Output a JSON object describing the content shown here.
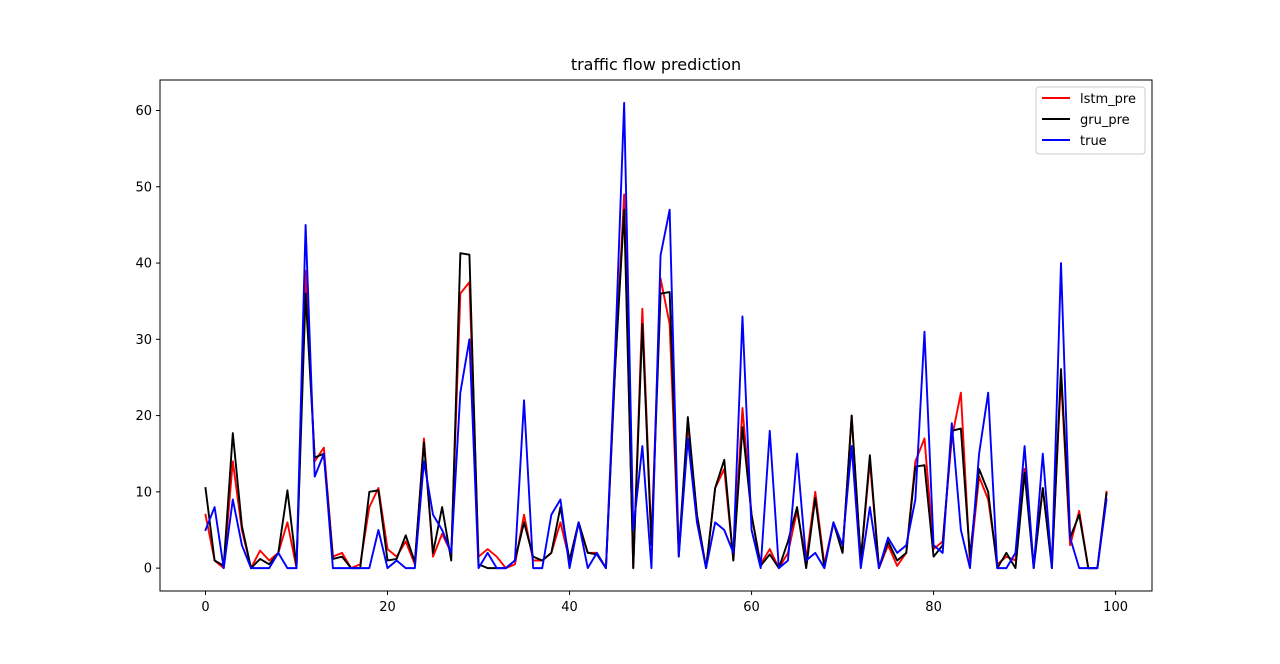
{
  "chart_data": {
    "type": "line",
    "title": "traffic flow prediction",
    "xlabel": "",
    "ylabel": "",
    "xlim": [
      -5,
      104
    ],
    "ylim": [
      -3,
      64
    ],
    "xticks": [
      0,
      20,
      40,
      60,
      80,
      100
    ],
    "yticks": [
      0,
      10,
      20,
      30,
      40,
      50,
      60
    ],
    "grid": false,
    "legend_position": "top-right",
    "series": [
      {
        "name": "lstm_pre",
        "color": "#ff0000",
        "values": [
          7,
          1,
          0,
          14,
          5,
          0,
          2.3,
          1,
          2,
          6,
          0,
          39,
          14,
          15.8,
          1.5,
          2,
          0,
          0.5,
          8,
          10.5,
          2.5,
          1.5,
          3.5,
          0.5,
          17,
          1.5,
          4.5,
          2,
          36,
          37.5,
          1.5,
          2.5,
          1.5,
          0,
          0.5,
          7,
          1,
          1,
          2,
          6,
          1,
          6,
          2,
          2,
          0,
          26,
          49,
          0,
          34,
          3.5,
          38,
          32,
          1.5,
          19,
          7,
          0,
          10.5,
          13,
          1,
          21,
          7,
          0.5,
          2.5,
          0,
          2,
          7.5,
          1,
          10,
          0.5,
          6,
          2,
          20,
          1,
          14,
          0,
          3,
          0.3,
          2,
          14,
          17,
          2.5,
          3.5,
          17,
          23,
          0.5,
          12,
          9,
          0.5,
          1.5,
          1,
          13,
          0.5,
          10.5,
          0.5,
          25,
          3,
          7.5,
          0,
          0,
          10
        ]
      },
      {
        "name": "gru_pre",
        "color": "#000000",
        "values": [
          10.5,
          1,
          0.3,
          17.7,
          5.5,
          0,
          1.2,
          0.5,
          2,
          10.2,
          0.2,
          36,
          14.5,
          15,
          1.2,
          1.5,
          0,
          0,
          10,
          10.2,
          1,
          1.2,
          4.3,
          0.8,
          16.5,
          2,
          8,
          1,
          41.3,
          41.1,
          0.5,
          0,
          0,
          0,
          1,
          6,
          1.5,
          1,
          2,
          8,
          1,
          6,
          2,
          1.8,
          0,
          26,
          47,
          0,
          32,
          3,
          36,
          36.2,
          2,
          19.8,
          7,
          0,
          10.5,
          14.2,
          1,
          18.5,
          7,
          0.3,
          1.8,
          0,
          3.5,
          8,
          0,
          9.2,
          0,
          6,
          2,
          20,
          1,
          14.8,
          0,
          3.5,
          1,
          2,
          13.3,
          13.5,
          1.5,
          3,
          18,
          18.3,
          1.5,
          13,
          10,
          0,
          2,
          0,
          12.5,
          0,
          10.5,
          0,
          26.1,
          4,
          7,
          0,
          0,
          9.8
        ]
      },
      {
        "name": "true",
        "color": "#0000ff",
        "values": [
          5,
          8,
          0,
          9,
          3,
          0,
          0,
          0,
          2,
          0,
          0,
          45,
          12,
          15,
          0,
          0,
          0,
          0,
          0,
          5,
          0,
          1,
          0,
          0,
          14,
          7,
          5,
          2,
          23,
          30,
          0,
          2,
          0,
          0,
          1,
          22,
          0,
          0,
          7,
          9,
          0,
          6,
          0,
          2,
          0,
          28,
          61,
          5,
          16,
          0,
          41,
          47,
          1.5,
          17,
          6,
          0,
          6,
          5,
          2,
          33,
          5,
          0,
          18,
          0,
          1,
          15,
          1,
          2,
          0,
          6,
          3,
          16,
          0,
          8,
          0,
          4,
          2,
          3,
          9,
          31,
          3,
          2,
          19,
          5,
          0,
          15,
          23,
          0,
          0,
          2,
          16,
          0,
          15,
          0,
          40,
          4,
          0,
          0,
          0,
          9
        ]
      }
    ]
  }
}
